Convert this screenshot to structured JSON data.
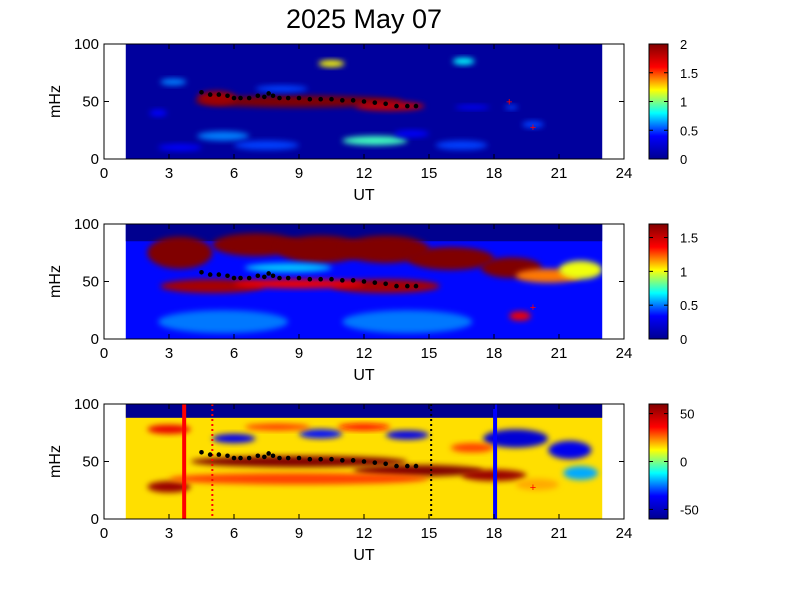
{
  "title": "2025 May 07",
  "colors": {
    "colormap": [
      "#00008f",
      "#0000ff",
      "#00ffff",
      "#ffff00",
      "#ff0000",
      "#800000"
    ],
    "background": "#00008f",
    "marker_black": "#000000",
    "marker_red": "#ff0000",
    "marker_blue": "#0000ff"
  },
  "chart_data": [
    {
      "type": "heatmap",
      "xlabel": "UT",
      "ylabel": "mHz",
      "xlim": [
        0,
        24
      ],
      "ylim": [
        0,
        100
      ],
      "xticks": [
        "0",
        "3",
        "6",
        "9",
        "12",
        "15",
        "18",
        "21",
        "24"
      ],
      "yticks": [
        "0",
        "50",
        "100"
      ],
      "data_range_ut": [
        1,
        23
      ],
      "colorbar": {
        "min": 0,
        "max": 2,
        "ticks": [
          "0",
          "0.5",
          "1",
          "1.5",
          "2"
        ]
      },
      "blobs": [
        {
          "ut": 9,
          "freq": 50,
          "wut": 4.8,
          "wf": 5,
          "value": 2.0
        },
        {
          "ut": 5.2,
          "freq": 53,
          "wut": 0.9,
          "wf": 6,
          "value": 1.9
        },
        {
          "ut": 13.2,
          "freq": 46,
          "wut": 1.6,
          "wf": 4,
          "value": 1.8
        },
        {
          "ut": 3.2,
          "freq": 67,
          "wut": 0.6,
          "wf": 3,
          "value": 0.6
        },
        {
          "ut": 8.2,
          "freq": 61,
          "wut": 1.2,
          "wf": 3,
          "value": 0.5
        },
        {
          "ut": 10.5,
          "freq": 83,
          "wut": 0.6,
          "wf": 3,
          "value": 1.2
        },
        {
          "ut": 16.6,
          "freq": 85,
          "wut": 0.5,
          "wf": 3,
          "value": 0.8
        },
        {
          "ut": 5.5,
          "freq": 20,
          "wut": 1.2,
          "wf": 4,
          "value": 0.6
        },
        {
          "ut": 7.5,
          "freq": 12,
          "wut": 1.5,
          "wf": 4,
          "value": 0.5
        },
        {
          "ut": 12.5,
          "freq": 16,
          "wut": 1.5,
          "wf": 4,
          "value": 0.9
        },
        {
          "ut": 16.5,
          "freq": 12,
          "wut": 1.2,
          "wf": 4,
          "value": 0.5
        },
        {
          "ut": 14.2,
          "freq": 22,
          "wut": 0.8,
          "wf": 3,
          "value": 0.4
        },
        {
          "ut": 3.5,
          "freq": 10,
          "wut": 1.0,
          "wf": 3,
          "value": 0.4
        },
        {
          "ut": 17.0,
          "freq": 45,
          "wut": 0.8,
          "wf": 2,
          "value": 0.4
        },
        {
          "ut": 19.8,
          "freq": 30,
          "wut": 0.5,
          "wf": 3,
          "value": 0.5
        },
        {
          "ut": 18.8,
          "freq": 45,
          "wut": 0.3,
          "wf": 2,
          "value": 0.5
        },
        {
          "ut": 2.5,
          "freq": 40,
          "wut": 0.4,
          "wf": 3,
          "value": 0.4
        }
      ]
    },
    {
      "type": "heatmap",
      "xlabel": "UT",
      "ylabel": "mHz",
      "xlim": [
        0,
        24
      ],
      "ylim": [
        0,
        100
      ],
      "xticks": [
        "0",
        "3",
        "6",
        "9",
        "12",
        "15",
        "18",
        "21",
        "24"
      ],
      "yticks": [
        "0",
        "50",
        "100"
      ],
      "data_range_ut": [
        1,
        23
      ],
      "colorbar": {
        "min": 0,
        "max": 1.7,
        "ticks": [
          "0",
          "0.5",
          "1",
          "1.5"
        ]
      },
      "blobs": [
        {
          "ut": 3.5,
          "freq": 75,
          "wut": 1.5,
          "wf": 14,
          "value": 1.8
        },
        {
          "ut": 7.0,
          "freq": 82,
          "wut": 2.0,
          "wf": 10,
          "value": 1.8
        },
        {
          "ut": 10.0,
          "freq": 78,
          "wut": 2.0,
          "wf": 12,
          "value": 1.8
        },
        {
          "ut": 13.0,
          "freq": 78,
          "wut": 2.0,
          "wf": 12,
          "value": 1.8
        },
        {
          "ut": 16.0,
          "freq": 70,
          "wut": 2.0,
          "wf": 10,
          "value": 1.8
        },
        {
          "ut": 18.8,
          "freq": 62,
          "wut": 1.4,
          "wf": 9,
          "value": 1.7
        },
        {
          "ut": 5.0,
          "freq": 46,
          "wut": 2.4,
          "wf": 6,
          "value": 1.6
        },
        {
          "ut": 13.0,
          "freq": 46,
          "wut": 2.5,
          "wf": 6,
          "value": 1.6
        },
        {
          "ut": 9.0,
          "freq": 48,
          "wut": 3.0,
          "wf": 4,
          "value": 1.4
        },
        {
          "ut": 8.5,
          "freq": 62,
          "wut": 2.0,
          "wf": 4,
          "value": 0.6
        },
        {
          "ut": 20.5,
          "freq": 55,
          "wut": 1.5,
          "wf": 6,
          "value": 1.2
        },
        {
          "ut": 22.0,
          "freq": 60,
          "wut": 1.0,
          "wf": 8,
          "value": 1.0
        },
        {
          "ut": 19.2,
          "freq": 20,
          "wut": 0.5,
          "wf": 4,
          "value": 1.4
        },
        {
          "ut": 5.5,
          "freq": 15,
          "wut": 3.0,
          "wf": 10,
          "value": 0.5
        },
        {
          "ut": 14.0,
          "freq": 15,
          "wut": 3.0,
          "wf": 10,
          "value": 0.5
        }
      ]
    },
    {
      "type": "heatmap",
      "xlabel": "UT",
      "ylabel": "mHz",
      "xlim": [
        0,
        24
      ],
      "ylim": [
        0,
        100
      ],
      "xticks": [
        "0",
        "3",
        "6",
        "9",
        "12",
        "15",
        "18",
        "21",
        "24"
      ],
      "yticks": [
        "0",
        "50",
        "100"
      ],
      "data_range_ut": [
        1,
        23
      ],
      "colorbar": {
        "min": -60,
        "max": 60,
        "ticks": [
          "-50",
          "0",
          "50"
        ]
      },
      "blobs": [
        {
          "ut": 9.0,
          "freq": 50,
          "wut": 5.0,
          "wf": 5,
          "value": 65
        },
        {
          "ut": 14.5,
          "freq": 42,
          "wut": 3.0,
          "wf": 5,
          "value": 60
        },
        {
          "ut": 18.0,
          "freq": 38,
          "wut": 1.5,
          "wf": 5,
          "value": 55
        },
        {
          "ut": 3.0,
          "freq": 28,
          "wut": 1.0,
          "wf": 5,
          "value": 55
        },
        {
          "ut": 9.0,
          "freq": 35,
          "wut": 6.0,
          "wf": 5,
          "value": 30
        },
        {
          "ut": 6.0,
          "freq": 70,
          "wut": 1.0,
          "wf": 4,
          "value": -40
        },
        {
          "ut": 10.0,
          "freq": 74,
          "wut": 1.0,
          "wf": 4,
          "value": -35
        },
        {
          "ut": 14.0,
          "freq": 73,
          "wut": 1.0,
          "wf": 4,
          "value": -40
        },
        {
          "ut": 19.0,
          "freq": 70,
          "wut": 1.5,
          "wf": 8,
          "value": -45
        },
        {
          "ut": 21.5,
          "freq": 60,
          "wut": 1.0,
          "wf": 8,
          "value": -40
        },
        {
          "ut": 3.0,
          "freq": 78,
          "wut": 1.0,
          "wf": 4,
          "value": 40
        },
        {
          "ut": 8.0,
          "freq": 80,
          "wut": 1.5,
          "wf": 3,
          "value": 30
        },
        {
          "ut": 12.0,
          "freq": 80,
          "wut": 1.2,
          "wf": 3,
          "value": 35
        },
        {
          "ut": 17.0,
          "freq": 62,
          "wut": 1.0,
          "wf": 4,
          "value": 30
        },
        {
          "ut": 20.0,
          "freq": 30,
          "wut": 1.0,
          "wf": 5,
          "value": 20
        },
        {
          "ut": 22.0,
          "freq": 40,
          "wut": 0.8,
          "wf": 6,
          "value": -20
        }
      ],
      "vertical_markers": [
        {
          "ut": 3.7,
          "style": "solid",
          "color": "#ff0000"
        },
        {
          "ut": 5.0,
          "style": "dotted",
          "color": "#ff0000"
        },
        {
          "ut": 15.1,
          "style": "dotted",
          "color": "#000000"
        },
        {
          "ut": 18.05,
          "style": "solid",
          "color": "#0000ff"
        }
      ]
    }
  ],
  "trace": {
    "ut": [
      4.5,
      4.9,
      5.3,
      5.7,
      6.0,
      6.3,
      6.7,
      7.1,
      7.4,
      7.6,
      7.8,
      8.1,
      8.5,
      9.0,
      9.5,
      10.0,
      10.5,
      11.0,
      11.5,
      12.0,
      12.5,
      13.0,
      13.5,
      14.0,
      14.4
    ],
    "freq": [
      58,
      56,
      56,
      55,
      53,
      53,
      53,
      55,
      54,
      57,
      55,
      53,
      53,
      53,
      52,
      52,
      52,
      51,
      51,
      50,
      49,
      48,
      46,
      46,
      46
    ]
  },
  "red_points": [
    {
      "panel": 0,
      "ut": 18.7,
      "freq": 50
    },
    {
      "panel": 0,
      "ut": 19.8,
      "freq": 28
    },
    {
      "panel": 1,
      "ut": 19.8,
      "freq": 28
    },
    {
      "panel": 2,
      "ut": 19.8,
      "freq": 28
    }
  ]
}
